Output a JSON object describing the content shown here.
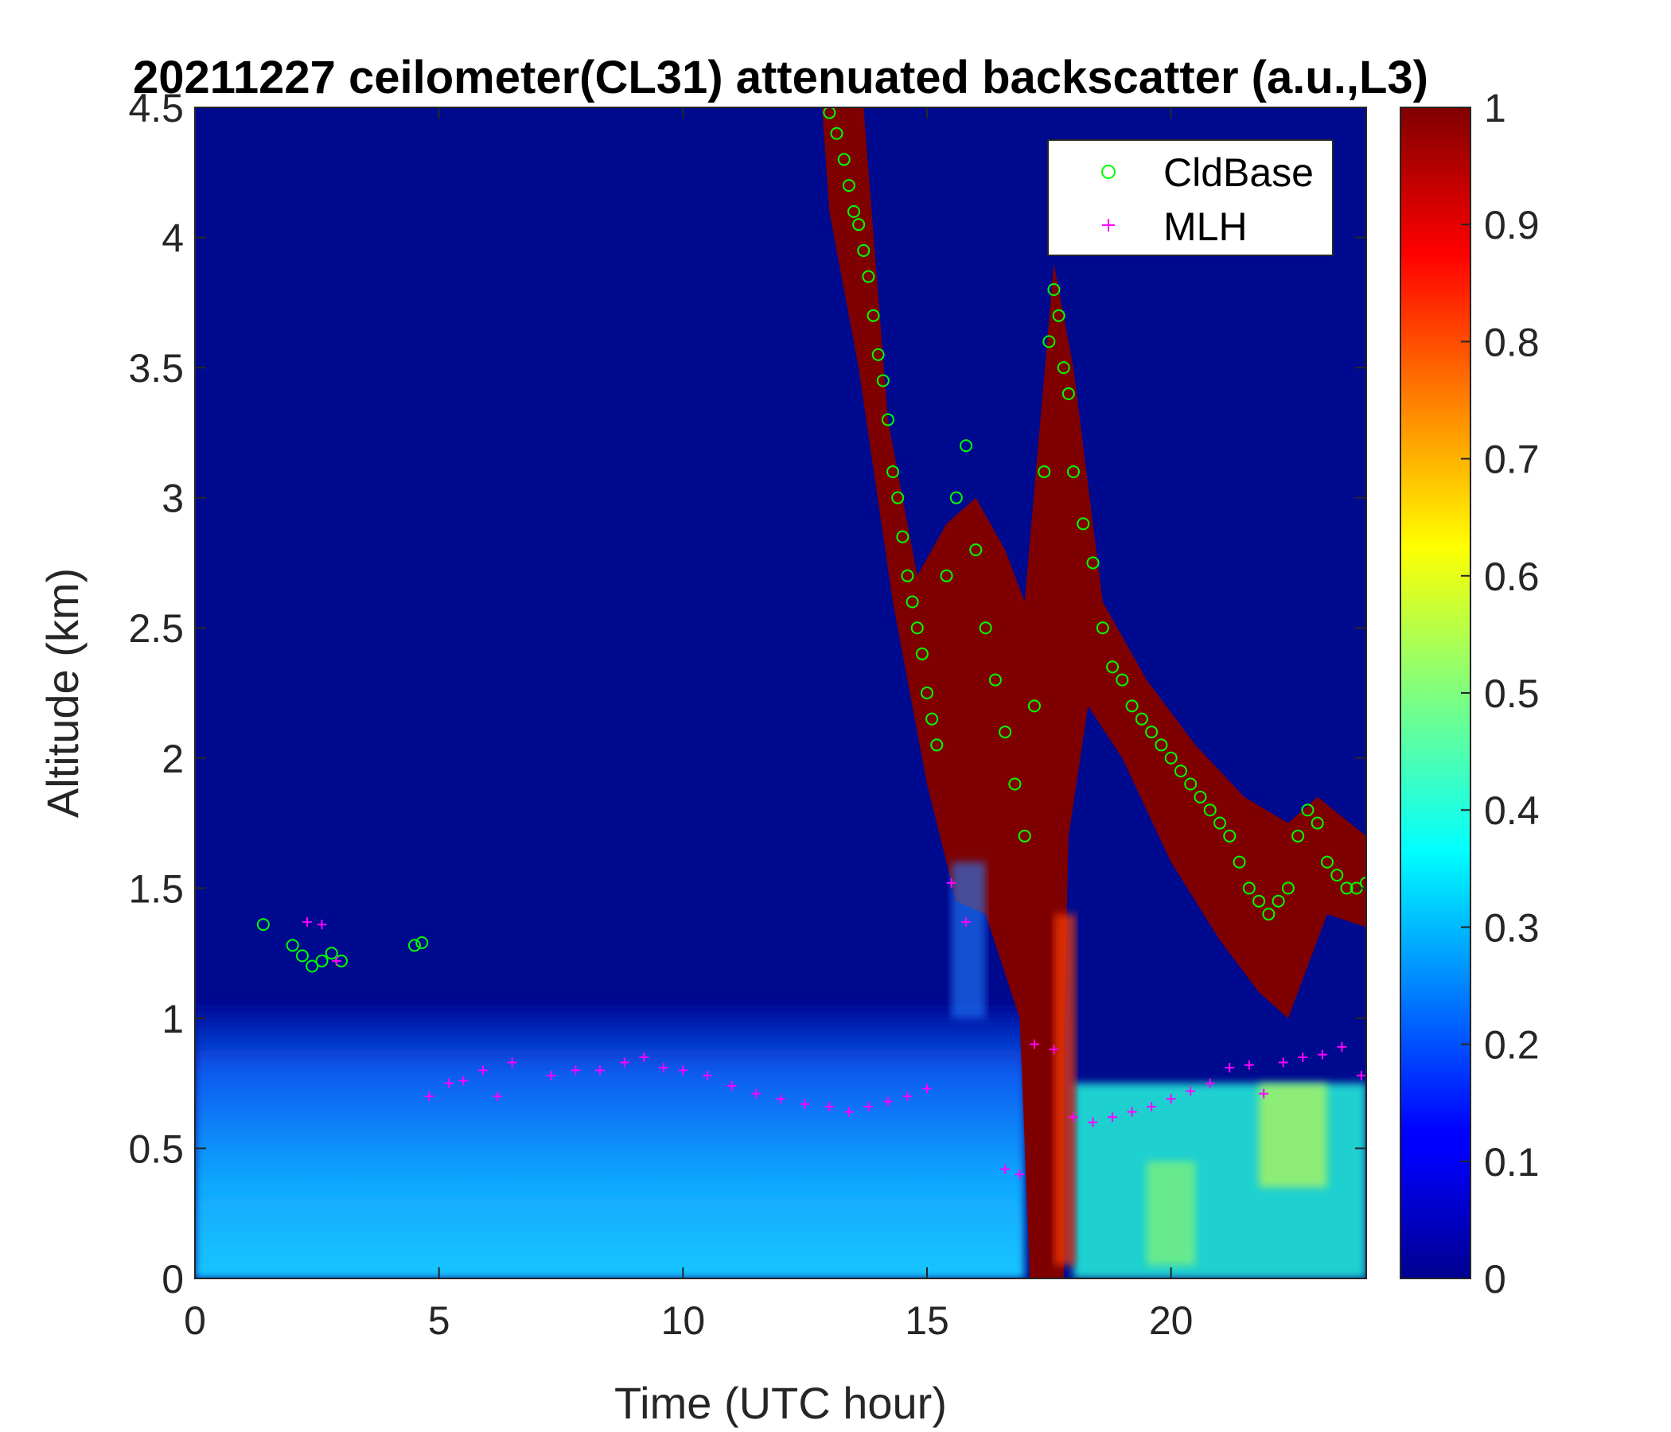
{
  "chart_data": {
    "type": "heatmap",
    "title": "20211227 ceilometer(CL31) attenuated backscatter (a.u.,L3)",
    "xlabel": "Time (UTC hour)",
    "ylabel": "Altitude (km)",
    "xlim": [
      0,
      24
    ],
    "ylim": [
      0,
      4.5
    ],
    "x_ticks": [
      "0",
      "5",
      "10",
      "15",
      "20"
    ],
    "y_ticks": [
      "0",
      "0.5",
      "1",
      "1.5",
      "2",
      "2.5",
      "3",
      "3.5",
      "4",
      "4.5"
    ],
    "colorbar": {
      "colormap": "jet",
      "range": [
        0,
        1
      ],
      "ticks": [
        "0",
        "0.1",
        "0.2",
        "0.3",
        "0.4",
        "0.5",
        "0.6",
        "0.7",
        "0.8",
        "0.9",
        "1"
      ]
    },
    "legend": {
      "location": "top-right",
      "entries": [
        "CldBase",
        "MLH"
      ]
    },
    "series": [
      {
        "name": "CldBase",
        "marker": "circle",
        "color": "#00ff00",
        "points": [
          [
            1.4,
            1.36
          ],
          [
            2.0,
            1.28
          ],
          [
            2.2,
            1.24
          ],
          [
            2.4,
            1.2
          ],
          [
            2.6,
            1.22
          ],
          [
            2.8,
            1.25
          ],
          [
            3.0,
            1.22
          ],
          [
            4.5,
            1.28
          ],
          [
            4.65,
            1.29
          ],
          [
            13.0,
            4.48
          ],
          [
            13.15,
            4.4
          ],
          [
            13.3,
            4.3
          ],
          [
            13.4,
            4.2
          ],
          [
            13.5,
            4.1
          ],
          [
            13.6,
            4.05
          ],
          [
            13.7,
            3.95
          ],
          [
            13.8,
            3.85
          ],
          [
            13.9,
            3.7
          ],
          [
            14.0,
            3.55
          ],
          [
            14.1,
            3.45
          ],
          [
            14.2,
            3.3
          ],
          [
            14.3,
            3.1
          ],
          [
            14.4,
            3.0
          ],
          [
            14.5,
            2.85
          ],
          [
            14.6,
            2.7
          ],
          [
            14.7,
            2.6
          ],
          [
            14.8,
            2.5
          ],
          [
            14.9,
            2.4
          ],
          [
            15.0,
            2.25
          ],
          [
            15.1,
            2.15
          ],
          [
            15.2,
            2.05
          ],
          [
            15.4,
            2.7
          ],
          [
            15.6,
            3.0
          ],
          [
            15.8,
            3.2
          ],
          [
            16.0,
            2.8
          ],
          [
            16.2,
            2.5
          ],
          [
            16.4,
            2.3
          ],
          [
            16.6,
            2.1
          ],
          [
            16.8,
            1.9
          ],
          [
            17.0,
            1.7
          ],
          [
            17.2,
            2.2
          ],
          [
            17.4,
            3.1
          ],
          [
            17.5,
            3.6
          ],
          [
            17.6,
            3.8
          ],
          [
            17.7,
            3.7
          ],
          [
            17.8,
            3.5
          ],
          [
            17.9,
            3.4
          ],
          [
            18.0,
            3.1
          ],
          [
            18.2,
            2.9
          ],
          [
            18.4,
            2.75
          ],
          [
            18.6,
            2.5
          ],
          [
            18.8,
            2.35
          ],
          [
            19.0,
            2.3
          ],
          [
            19.2,
            2.2
          ],
          [
            19.4,
            2.15
          ],
          [
            19.6,
            2.1
          ],
          [
            19.8,
            2.05
          ],
          [
            20.0,
            2.0
          ],
          [
            20.2,
            1.95
          ],
          [
            20.4,
            1.9
          ],
          [
            20.6,
            1.85
          ],
          [
            20.8,
            1.8
          ],
          [
            21.0,
            1.75
          ],
          [
            21.2,
            1.7
          ],
          [
            21.4,
            1.6
          ],
          [
            21.6,
            1.5
          ],
          [
            21.8,
            1.45
          ],
          [
            22.0,
            1.4
          ],
          [
            22.2,
            1.45
          ],
          [
            22.4,
            1.5
          ],
          [
            22.6,
            1.7
          ],
          [
            22.8,
            1.8
          ],
          [
            23.0,
            1.75
          ],
          [
            23.2,
            1.6
          ],
          [
            23.4,
            1.55
          ],
          [
            23.6,
            1.5
          ],
          [
            23.8,
            1.5
          ],
          [
            24.0,
            1.52
          ]
        ]
      },
      {
        "name": "MLH",
        "marker": "plus",
        "color": "#ff00ff",
        "points": [
          [
            2.3,
            1.37
          ],
          [
            2.6,
            1.36
          ],
          [
            2.9,
            1.22
          ],
          [
            4.8,
            0.7
          ],
          [
            5.2,
            0.75
          ],
          [
            5.5,
            0.76
          ],
          [
            5.9,
            0.8
          ],
          [
            6.2,
            0.7
          ],
          [
            6.5,
            0.83
          ],
          [
            7.3,
            0.78
          ],
          [
            7.8,
            0.8
          ],
          [
            8.3,
            0.8
          ],
          [
            8.8,
            0.83
          ],
          [
            9.2,
            0.85
          ],
          [
            9.6,
            0.81
          ],
          [
            10.0,
            0.8
          ],
          [
            10.5,
            0.78
          ],
          [
            11.0,
            0.74
          ],
          [
            11.5,
            0.71
          ],
          [
            12.0,
            0.69
          ],
          [
            12.5,
            0.67
          ],
          [
            13.0,
            0.66
          ],
          [
            13.4,
            0.64
          ],
          [
            13.8,
            0.66
          ],
          [
            14.2,
            0.68
          ],
          [
            14.6,
            0.7
          ],
          [
            15.0,
            0.73
          ],
          [
            15.5,
            1.52
          ],
          [
            15.8,
            1.37
          ],
          [
            16.6,
            0.42
          ],
          [
            16.9,
            0.4
          ],
          [
            17.2,
            0.9
          ],
          [
            17.6,
            0.88
          ],
          [
            18.0,
            0.62
          ],
          [
            18.4,
            0.6
          ],
          [
            18.8,
            0.62
          ],
          [
            19.2,
            0.64
          ],
          [
            19.6,
            0.66
          ],
          [
            20.0,
            0.69
          ],
          [
            20.4,
            0.72
          ],
          [
            20.8,
            0.75
          ],
          [
            21.2,
            0.81
          ],
          [
            21.6,
            0.82
          ],
          [
            21.9,
            0.71
          ],
          [
            22.3,
            0.83
          ],
          [
            22.7,
            0.85
          ],
          [
            23.1,
            0.86
          ],
          [
            23.5,
            0.89
          ],
          [
            23.9,
            0.78
          ]
        ]
      }
    ]
  }
}
